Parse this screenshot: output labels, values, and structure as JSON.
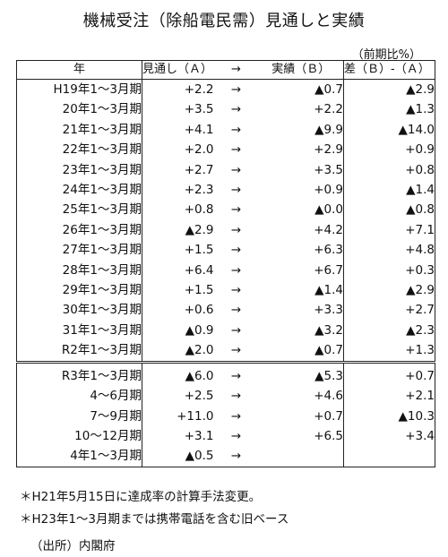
{
  "title": "機械受注（除船電民需）見通しと実績",
  "unit": "（前期比%）",
  "headers": {
    "year": "年",
    "expected": "見通し（Ａ）",
    "arrow": "→",
    "actual": "実績（Ｂ）",
    "diff": "差（Ｂ）-（Ａ）"
  },
  "rows": [
    {
      "year": "H19年1～3月期",
      "expected": "+2.2",
      "arrow": "→",
      "actual": "▲0.7",
      "diff": "▲2.9"
    },
    {
      "year": "20年1～3月期",
      "expected": "+3.5",
      "arrow": "→",
      "actual": "+2.2",
      "diff": "▲1.3"
    },
    {
      "year": "21年1～3月期",
      "expected": "+4.1",
      "arrow": "→",
      "actual": "▲9.9",
      "diff": "▲14.0"
    },
    {
      "year": "22年1～3月期",
      "expected": "+2.0",
      "arrow": "→",
      "actual": "+2.9",
      "diff": "+0.9"
    },
    {
      "year": "23年1～3月期",
      "expected": "+2.7",
      "arrow": "→",
      "actual": "+3.5",
      "diff": "+0.8"
    },
    {
      "year": "24年1～3月期",
      "expected": "+2.3",
      "arrow": "→",
      "actual": "+0.9",
      "diff": "▲1.4"
    },
    {
      "year": "25年1～3月期",
      "expected": "+0.8",
      "arrow": "→",
      "actual": "▲0.0",
      "diff": "▲0.8"
    },
    {
      "year": "26年1～3月期",
      "expected": "▲2.9",
      "arrow": "→",
      "actual": "+4.2",
      "diff": "+7.1"
    },
    {
      "year": "27年1～3月期",
      "expected": "+1.5",
      "arrow": "→",
      "actual": "+6.3",
      "diff": "+4.8"
    },
    {
      "year": "28年1～3月期",
      "expected": "+6.4",
      "arrow": "→",
      "actual": "+6.7",
      "diff": "+0.3"
    },
    {
      "year": "29年1～3月期",
      "expected": "+1.5",
      "arrow": "→",
      "actual": "▲1.4",
      "diff": "▲2.9"
    },
    {
      "year": "30年1～3月期",
      "expected": "+0.6",
      "arrow": "→",
      "actual": "+3.3",
      "diff": "+2.7"
    },
    {
      "year": "31年1～3月期",
      "expected": "▲0.9",
      "arrow": "→",
      "actual": "▲3.2",
      "diff": "▲2.3"
    },
    {
      "year": "R2年1～3月期",
      "expected": "▲2.0",
      "arrow": "→",
      "actual": "▲0.7",
      "diff": "+1.3"
    },
    {
      "year": "R3年1～3月期",
      "expected": "▲6.0",
      "arrow": "→",
      "actual": "▲5.3",
      "diff": "+0.7"
    },
    {
      "year": "4～6月期",
      "expected": "+2.5",
      "arrow": "→",
      "actual": "+4.6",
      "diff": "+2.1"
    },
    {
      "year": "7～9月期",
      "expected": "+11.0",
      "arrow": "→",
      "actual": "+0.7",
      "diff": "▲10.3"
    },
    {
      "year": "10～12月期",
      "expected": "+3.1",
      "arrow": "→",
      "actual": "+6.5",
      "diff": "+3.4"
    },
    {
      "year": "4年1～3月期",
      "expected": "▲0.5",
      "arrow": "→",
      "actual": "",
      "diff": ""
    }
  ],
  "notes": {
    "note1": "＊H21年5月15日に達成率の計算手法変更。",
    "note2": "＊H23年1～3月期までは携帯電話を含む旧ベース",
    "source": "（出所）内閣府"
  }
}
